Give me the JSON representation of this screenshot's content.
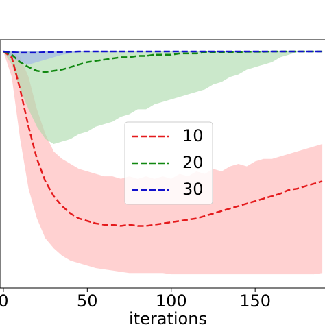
{
  "chart_data": {
    "type": "line",
    "x_label": "iterations",
    "x": [
      0,
      5,
      10,
      15,
      20,
      25,
      30,
      35,
      40,
      45,
      50,
      55,
      60,
      65,
      70,
      75,
      80,
      85,
      90,
      95,
      100,
      105,
      110,
      115,
      120,
      125,
      130,
      135,
      140,
      145,
      150,
      155,
      160,
      165,
      170,
      175,
      180,
      185,
      190
    ],
    "xlim": [
      -2,
      192
    ],
    "xticks": [
      0,
      50,
      100,
      150
    ],
    "ylim": [
      0,
      1
    ],
    "series": [
      {
        "name": "10",
        "color": "#e41a1c",
        "band_color": "#ffb3b3",
        "values": [
          0.953,
          0.93,
          0.8,
          0.65,
          0.52,
          0.43,
          0.37,
          0.33,
          0.3,
          0.28,
          0.27,
          0.26,
          0.255,
          0.255,
          0.25,
          0.255,
          0.25,
          0.25,
          0.255,
          0.26,
          0.265,
          0.27,
          0.275,
          0.28,
          0.29,
          0.3,
          0.31,
          0.32,
          0.33,
          0.34,
          0.35,
          0.36,
          0.37,
          0.38,
          0.395,
          0.4,
          0.41,
          0.42,
          0.43
        ],
        "lower": [
          0.953,
          0.85,
          0.6,
          0.4,
          0.28,
          0.2,
          0.16,
          0.13,
          0.11,
          0.1,
          0.09,
          0.08,
          0.075,
          0.07,
          0.065,
          0.06,
          0.06,
          0.06,
          0.06,
          0.06,
          0.055,
          0.055,
          0.055,
          0.055,
          0.055,
          0.055,
          0.055,
          0.055,
          0.055,
          0.055,
          0.055,
          0.055,
          0.055,
          0.055,
          0.055,
          0.055,
          0.055,
          0.055,
          0.06
        ],
        "upper": [
          0.953,
          0.95,
          0.93,
          0.85,
          0.72,
          0.62,
          0.55,
          0.52,
          0.5,
          0.48,
          0.47,
          0.46,
          0.45,
          0.45,
          0.44,
          0.45,
          0.44,
          0.45,
          0.44,
          0.45,
          0.44,
          0.46,
          0.45,
          0.47,
          0.46,
          0.48,
          0.47,
          0.49,
          0.5,
          0.49,
          0.51,
          0.52,
          0.52,
          0.53,
          0.54,
          0.55,
          0.56,
          0.57,
          0.58
        ]
      },
      {
        "name": "20",
        "color": "#118811",
        "band_color": "#a9d8a9",
        "values": [
          0.953,
          0.94,
          0.91,
          0.89,
          0.875,
          0.87,
          0.875,
          0.88,
          0.89,
          0.9,
          0.91,
          0.915,
          0.92,
          0.925,
          0.93,
          0.93,
          0.935,
          0.935,
          0.94,
          0.94,
          0.94,
          0.945,
          0.945,
          0.945,
          0.95,
          0.95,
          0.95,
          0.95,
          0.95,
          0.952,
          0.952,
          0.952,
          0.953,
          0.953,
          0.953,
          0.953,
          0.953,
          0.953,
          0.953
        ],
        "lower": [
          0.953,
          0.9,
          0.8,
          0.72,
          0.65,
          0.6,
          0.58,
          0.59,
          0.6,
          0.62,
          0.63,
          0.65,
          0.66,
          0.67,
          0.69,
          0.7,
          0.72,
          0.72,
          0.74,
          0.75,
          0.76,
          0.77,
          0.78,
          0.79,
          0.8,
          0.82,
          0.83,
          0.85,
          0.86,
          0.88,
          0.89,
          0.9,
          0.91,
          0.93,
          0.94,
          0.95,
          0.953,
          0.953,
          0.953
        ],
        "upper": [
          0.953,
          0.953,
          0.953,
          0.953,
          0.953,
          0.953,
          0.953,
          0.953,
          0.953,
          0.953,
          0.953,
          0.953,
          0.953,
          0.953,
          0.953,
          0.953,
          0.953,
          0.953,
          0.953,
          0.953,
          0.953,
          0.953,
          0.953,
          0.953,
          0.953,
          0.953,
          0.953,
          0.953,
          0.953,
          0.953,
          0.953,
          0.953,
          0.953,
          0.953,
          0.953,
          0.953,
          0.953,
          0.953,
          0.953
        ]
      },
      {
        "name": "30",
        "color": "#1010cc",
        "band_color": "#9fb0ee",
        "values": [
          0.953,
          0.95,
          0.948,
          0.948,
          0.948,
          0.95,
          0.95,
          0.951,
          0.952,
          0.953,
          0.953,
          0.953,
          0.953,
          0.953,
          0.953,
          0.953,
          0.953,
          0.953,
          0.953,
          0.953,
          0.953,
          0.953,
          0.953,
          0.953,
          0.953,
          0.953,
          0.953,
          0.953,
          0.953,
          0.953,
          0.953,
          0.953,
          0.953,
          0.953,
          0.953,
          0.953,
          0.953,
          0.953,
          0.953
        ],
        "lower": [
          0.953,
          0.93,
          0.91,
          0.9,
          0.91,
          0.92,
          0.93,
          0.94,
          0.945,
          0.95,
          0.952,
          0.952,
          0.952,
          0.952,
          0.952,
          0.952,
          0.952,
          0.952,
          0.952,
          0.952,
          0.952,
          0.952,
          0.952,
          0.952,
          0.952,
          0.952,
          0.952,
          0.952,
          0.952,
          0.952,
          0.952,
          0.952,
          0.952,
          0.952,
          0.952,
          0.952,
          0.952,
          0.952,
          0.952
        ],
        "upper": [
          0.953,
          0.953,
          0.953,
          0.953,
          0.953,
          0.953,
          0.953,
          0.953,
          0.953,
          0.953,
          0.953,
          0.953,
          0.953,
          0.953,
          0.953,
          0.953,
          0.953,
          0.953,
          0.953,
          0.953,
          0.953,
          0.953,
          0.953,
          0.953,
          0.953,
          0.953,
          0.953,
          0.953,
          0.953,
          0.953,
          0.953,
          0.953,
          0.953,
          0.953,
          0.953,
          0.953,
          0.953,
          0.953,
          0.953
        ]
      }
    ]
  }
}
